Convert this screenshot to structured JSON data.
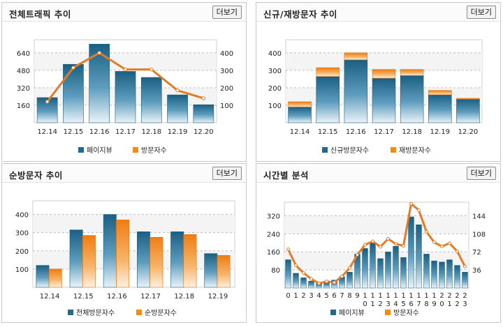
{
  "more_label": "더보기",
  "colors": {
    "bar_blue": "#1f6a8e",
    "bar_orange": "#f28a1a",
    "line_orange": "#e37b25"
  },
  "panels": [
    {
      "title": "전체트래픽 추이",
      "chart_data": {
        "type": "bar",
        "categories": [
          "12.14",
          "12.15",
          "12.16",
          "12.17",
          "12.18",
          "12.19",
          "12.20"
        ],
        "left_axis": {
          "ticks": [
            160,
            320,
            480,
            640
          ],
          "range": [
            0,
            760
          ]
        },
        "right_axis": {
          "ticks": [
            100,
            200,
            300,
            400
          ],
          "range": [
            0,
            475
          ]
        },
        "series": [
          {
            "name": "페이지뷰",
            "kind": "bar",
            "color": "blue",
            "axis": "left",
            "values": [
              230,
              535,
              720,
              470,
              415,
              255,
              165
            ]
          },
          {
            "name": "방문자수",
            "kind": "line",
            "color": "orange",
            "axis": "right",
            "values": [
              120,
              315,
              400,
              305,
              305,
              185,
              140
            ]
          }
        ],
        "legend": [
          "페이지뷰",
          "방문자수"
        ]
      }
    },
    {
      "title": "신규/재방문자 추이",
      "chart_data": {
        "type": "bar",
        "categories": [
          "12.14",
          "12.15",
          "12.16",
          "12.17",
          "12.18",
          "12.19",
          "12.20"
        ],
        "left_axis": {
          "ticks": [
            100,
            200,
            300,
            400
          ],
          "range": [
            0,
            475
          ]
        },
        "series": [
          {
            "name": "신규방문자수",
            "kind": "bar",
            "color": "blue",
            "values": [
              90,
              265,
              360,
              255,
              270,
              160,
              135
            ]
          },
          {
            "name": "재방문자수",
            "kind": "bar",
            "color": "orange",
            "values": [
              30,
              50,
              40,
              50,
              35,
              25,
              5
            ]
          }
        ],
        "stacked": true,
        "legend": [
          "신규방문자수",
          "재방문자수"
        ]
      }
    },
    {
      "title": "순방문자 추이",
      "chart_data": {
        "type": "bar",
        "categories": [
          "12.14",
          "12.15",
          "12.16",
          "12.17",
          "12.18",
          "12.19"
        ],
        "left_axis": {
          "ticks": [
            100,
            200,
            300,
            400
          ],
          "range": [
            0,
            475
          ]
        },
        "series": [
          {
            "name": "전체방문자수",
            "kind": "bar",
            "color": "blue",
            "values": [
              120,
              315,
              400,
              305,
              305,
              185
            ]
          },
          {
            "name": "순방문자수",
            "kind": "bar",
            "color": "orange",
            "values": [
              100,
              285,
              370,
              275,
              290,
              175
            ]
          }
        ],
        "grouped": true,
        "legend": [
          "전체방문자수",
          "순방문자수"
        ]
      }
    },
    {
      "title": "시간별 분석",
      "chart_data": {
        "type": "bar",
        "categories": [
          "0",
          "1",
          "2",
          "3",
          "4",
          "5",
          "6",
          "7",
          "8",
          "9",
          "10",
          "11",
          "12",
          "13",
          "14",
          "15",
          "16",
          "17",
          "18",
          "19",
          "20",
          "21",
          "22",
          "23"
        ],
        "x_labels_line1": [
          "0",
          "1",
          "2",
          "3",
          "4",
          "5",
          "6",
          "7",
          "8",
          "9",
          "1",
          "1",
          "1",
          "1",
          "1",
          "1",
          "1",
          "1",
          "1",
          "1",
          "2",
          "2",
          "2",
          "2"
        ],
        "x_labels_line2": [
          "",
          "",
          "",
          "",
          "",
          "",
          "",
          "",
          "",
          "",
          "0",
          "1",
          "2",
          "3",
          "4",
          "5",
          "6",
          "7",
          "8",
          "9",
          "0",
          "1",
          "2",
          "3"
        ],
        "left_axis": {
          "ticks": [
            80,
            160,
            240,
            320
          ],
          "range": [
            0,
            380
          ]
        },
        "right_axis": {
          "ticks": [
            36,
            72,
            108,
            144
          ],
          "range": [
            0,
            171
          ]
        },
        "series": [
          {
            "name": "페이지뷰",
            "kind": "bar",
            "color": "blue",
            "axis": "left",
            "values": [
              125,
              65,
              45,
              30,
              20,
              25,
              35,
              50,
              70,
              150,
              175,
              200,
              130,
              160,
              185,
              135,
              315,
              280,
              150,
              120,
              115,
              125,
              100,
              70
            ]
          },
          {
            "name": "방문자수",
            "kind": "line",
            "color": "orange",
            "axis": "right",
            "values": [
              77,
              45,
              30,
              18,
              9,
              13,
              11,
              23,
              40,
              66,
              86,
              93,
              82,
              98,
              88,
              84,
              168,
              155,
              112,
              91,
              83,
              89,
              73,
              43
            ]
          }
        ],
        "legend": [
          "페이지뷰",
          "방문자수"
        ]
      }
    }
  ]
}
